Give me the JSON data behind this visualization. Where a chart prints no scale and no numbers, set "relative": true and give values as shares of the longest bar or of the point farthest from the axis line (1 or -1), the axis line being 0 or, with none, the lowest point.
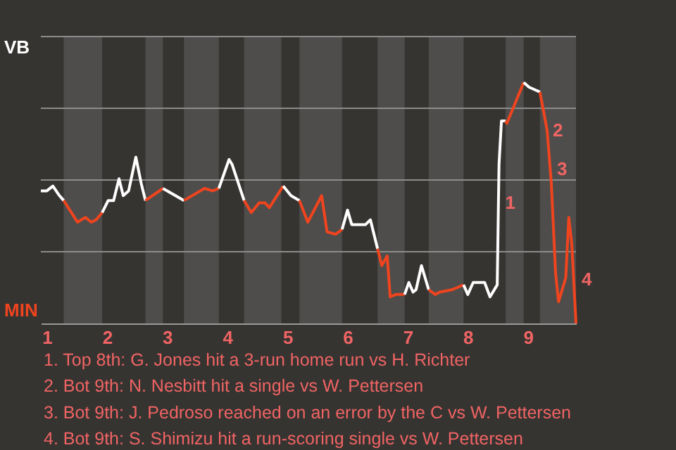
{
  "chart_data": {
    "type": "line",
    "relative": true,
    "grid": "y",
    "xlim": [
      0.9,
      9.8
    ],
    "xticks": [
      1,
      2,
      3,
      4,
      5,
      6,
      7,
      8,
      9
    ],
    "series": [
      {
        "color": "#ffffff",
        "x": [
          0.9,
          1.0,
          1.1,
          1.21,
          1.28
        ],
        "values": [
          0.55,
          0.55,
          0.57,
          0.53,
          0.51
        ]
      },
      {
        "color": "#f0441f",
        "x": [
          1.28,
          1.51,
          1.64,
          1.74,
          1.82,
          1.92
        ],
        "values": [
          0.51,
          0.42,
          0.44,
          0.42,
          0.43,
          0.46
        ]
      },
      {
        "color": "#ffffff",
        "x": [
          1.92,
          2.02,
          2.11,
          2.2,
          2.27,
          2.36,
          2.48,
          2.57,
          2.64
        ],
        "values": [
          0.46,
          0.51,
          0.51,
          0.6,
          0.53,
          0.55,
          0.69,
          0.58,
          0.51
        ]
      },
      {
        "color": "#f0441f",
        "x": [
          2.64,
          2.93
        ],
        "values": [
          0.51,
          0.56
        ]
      },
      {
        "color": "#ffffff",
        "x": [
          2.93,
          3.28
        ],
        "values": [
          0.56,
          0.51
        ]
      },
      {
        "color": "#f0441f",
        "x": [
          3.28,
          3.62,
          3.76,
          3.86
        ],
        "values": [
          0.51,
          0.56,
          0.55,
          0.56
        ]
      },
      {
        "color": "#ffffff",
        "x": [
          3.86,
          4.03,
          4.08,
          4.28
        ],
        "values": [
          0.56,
          0.68,
          0.66,
          0.51
        ]
      },
      {
        "color": "#f0441f",
        "x": [
          4.28,
          4.4,
          4.53,
          4.63,
          4.7,
          4.93
        ],
        "values": [
          0.51,
          0.46,
          0.5,
          0.5,
          0.48,
          0.57
        ]
      },
      {
        "color": "#fefefe",
        "x": [
          4.93,
          5.06,
          5.2
        ],
        "values": [
          0.57,
          0.53,
          0.51
        ]
      },
      {
        "color": "#f0441f",
        "x": [
          5.2,
          5.34,
          5.57,
          5.66,
          5.8,
          5.91
        ],
        "values": [
          0.51,
          0.42,
          0.53,
          0.38,
          0.37,
          0.39
        ]
      },
      {
        "color": "#ffffff",
        "x": [
          5.91,
          6.0,
          6.07,
          6.3,
          6.38,
          6.5
        ],
        "values": [
          0.39,
          0.47,
          0.41,
          0.41,
          0.43,
          0.31
        ]
      },
      {
        "color": "#f0441f",
        "x": [
          6.5,
          6.57,
          6.66,
          6.71,
          6.8,
          6.95
        ],
        "values": [
          0.31,
          0.24,
          0.28,
          0.11,
          0.12,
          0.12
        ]
      },
      {
        "color": "#ffffff",
        "x": [
          6.95,
          7.02,
          7.09,
          7.14,
          7.23,
          7.35
        ],
        "values": [
          0.12,
          0.17,
          0.13,
          0.14,
          0.24,
          0.14
        ]
      },
      {
        "color": "#f0441f",
        "x": [
          7.35,
          7.46,
          7.53,
          7.74,
          7.93
        ],
        "values": [
          0.14,
          0.12,
          0.13,
          0.14,
          0.16
        ]
      },
      {
        "color": "#fdfdfd",
        "x": [
          7.93,
          8.0,
          8.09,
          8.28,
          8.37,
          8.49,
          8.5,
          8.51,
          8.52,
          8.56,
          8.63
        ],
        "values": [
          0.16,
          0.12,
          0.17,
          0.17,
          0.11,
          0.16,
          0.33,
          0.5,
          0.66,
          0.84,
          0.84
        ]
      },
      {
        "color": "#f0441f",
        "x": [
          8.63,
          8.65,
          8.93
        ],
        "values": [
          0.84,
          0.83,
          1
        ]
      },
      {
        "color": "#ffffff",
        "x": [
          8.93,
          9.02,
          9.2
        ],
        "values": [
          1,
          0.98,
          0.96
        ]
      },
      {
        "color": "#f0441f",
        "x": [
          9.2,
          9.32,
          9.39,
          9.46,
          9.51,
          9.63,
          9.68,
          9.73,
          9.8
        ],
        "values": [
          0.96,
          0.8,
          0.58,
          0.21,
          0.09,
          0.19,
          0.44,
          0.33,
          0
        ]
      }
    ],
    "bands": [
      {
        "axis": "x",
        "from": 1.28,
        "to": 1.92,
        "color": "#4e4d4b"
      },
      {
        "axis": "x",
        "from": 2.64,
        "to": 2.93,
        "color": "#4e4d4b"
      },
      {
        "axis": "x",
        "from": 3.28,
        "to": 3.86,
        "color": "#4e4d4b"
      },
      {
        "axis": "x",
        "from": 4.28,
        "to": 4.9,
        "color": "#4e4d4b"
      },
      {
        "axis": "x",
        "from": 5.2,
        "to": 5.91,
        "color": "#4e4d4b"
      },
      {
        "axis": "x",
        "from": 6.5,
        "to": 6.95,
        "color": "#4e4d4b"
      },
      {
        "axis": "x",
        "from": 7.35,
        "to": 7.93,
        "color": "#4e4d4b"
      },
      {
        "axis": "x",
        "from": 8.63,
        "to": 8.93,
        "color": "#4e4d4b"
      },
      {
        "axis": "x",
        "from": 9.2,
        "to": 9.8,
        "color": "#4e4d4b"
      }
    ],
    "annotations": [
      "VB",
      "MIN",
      {
        "text": "1",
        "x": 8.53,
        "y": 0.5
      },
      {
        "text": "2",
        "x": 9.32,
        "y": 0.8
      },
      {
        "text": "3",
        "x": 9.39,
        "y": 0.64
      },
      {
        "text": "4",
        "x": 9.8,
        "y": 0.18
      },
      "1. Top 8th: G. Jones hit a 3-run home run vs H. Richter",
      "2. Bot 9th: N. Nesbitt hit a single vs W. Pettersen",
      "3. Bot 9th: J. Pedroso reached on an error by the C vs W. Pettersen",
      "4. Bot 9th: S. Shimizu hit a run-scoring single vs W. Pettersen"
    ]
  }
}
